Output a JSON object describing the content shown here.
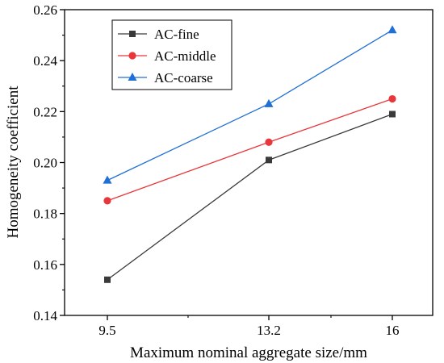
{
  "chart_data": {
    "type": "line",
    "title": "",
    "xlabel": "Maximum nominal aggregate size/mm",
    "ylabel": "Homogeneity coefficient",
    "categories": [
      "9.5",
      "13.2",
      "16"
    ],
    "ylim": [
      0.14,
      0.26
    ],
    "yticks": [
      "0.14",
      "0.16",
      "0.18",
      "0.20",
      "0.22",
      "0.24",
      "0.26"
    ],
    "legend_position": "top-left",
    "grid": false,
    "series": [
      {
        "name": "AC-fine",
        "marker": "square",
        "color": "#3a3a3a",
        "values": [
          0.154,
          0.201,
          0.219
        ]
      },
      {
        "name": "AC-middle",
        "marker": "circle",
        "color": "#e8363a",
        "values": [
          0.185,
          0.208,
          0.225
        ]
      },
      {
        "name": "AC-coarse",
        "marker": "triangle",
        "color": "#1f6fd6",
        "values": [
          0.193,
          0.223,
          0.252
        ]
      }
    ]
  }
}
